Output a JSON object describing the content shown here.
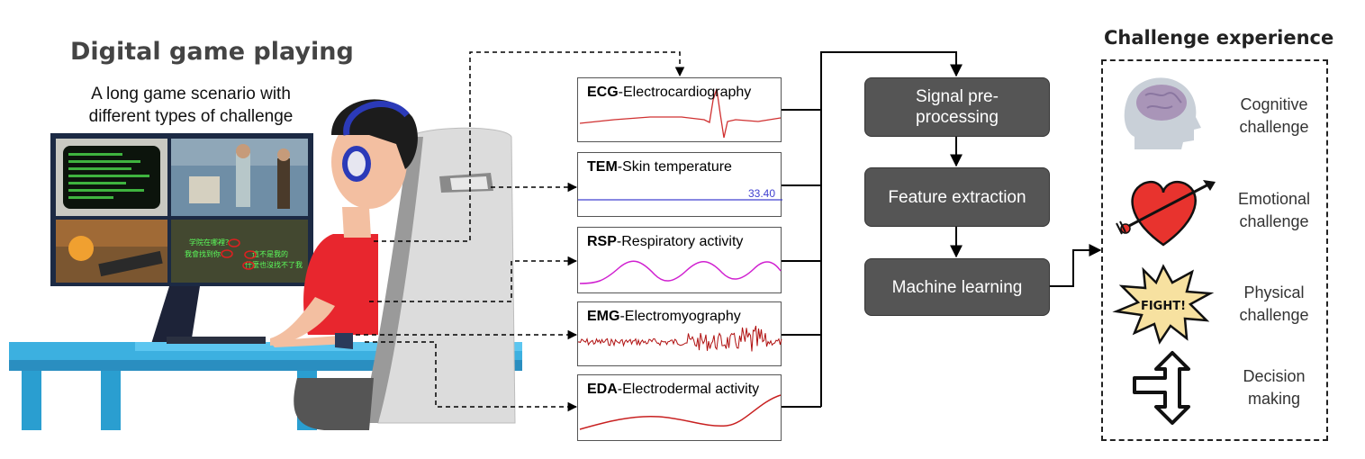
{
  "left_panel": {
    "title": "Digital game playing",
    "subtitle": "A long game scenario with different types of challenge",
    "game_overlay_text": [
      "学院在哪裡？",
      "我會找到你",
      "這不是我的",
      "什麼也沒找不了我"
    ]
  },
  "signals": [
    {
      "abbr": "ECG",
      "name": "-Electrocardiography"
    },
    {
      "abbr": "TEM",
      "name": "-Skin temperature",
      "value": "33.40"
    },
    {
      "abbr": "RSP",
      "name": "-Respiratory activity"
    },
    {
      "abbr": "EMG",
      "name": "-Electromyography"
    },
    {
      "abbr": "EDA",
      "name": "-Electrodermal activity"
    }
  ],
  "pipeline": [
    {
      "label": "Signal pre-processing"
    },
    {
      "label": "Feature extraction"
    },
    {
      "label": "Machine learning"
    }
  ],
  "challenge": {
    "title": "Challenge experience",
    "items": [
      {
        "label_line1": "Cognitive",
        "label_line2": "challenge",
        "icon": "brain-head-icon"
      },
      {
        "label_line1": "Emotional",
        "label_line2": "challenge",
        "icon": "heart-arrow-icon"
      },
      {
        "label_line1": "Physical",
        "label_line2": "challenge",
        "icon": "fight-burst-icon",
        "icon_text": "FIGHT!"
      },
      {
        "label_line1": "Decision",
        "label_line2": "making",
        "icon": "fork-arrow-icon"
      }
    ]
  },
  "colors": {
    "ecg": "#d03030",
    "tem": "#4040d0",
    "rsp": "#d020d0",
    "emg": "#b01010",
    "eda": "#c82020",
    "process_box": "#555555"
  }
}
